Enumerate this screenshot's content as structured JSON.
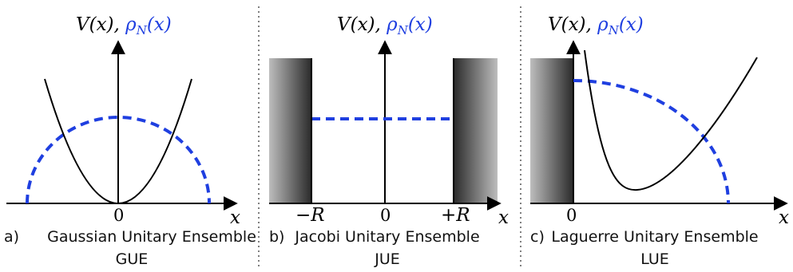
{
  "colors": {
    "density": "#1f3fe0",
    "potential": "#000000",
    "axis": "#000000",
    "wall_dark": "#2a2a2a",
    "wall_light": "#bdbdbd"
  },
  "panels": [
    {
      "id": "gue",
      "label": "a)",
      "title_line1": "Gaussian Unitary Ensemble",
      "title_line2": "GUE",
      "y_axis_V": "V(x),",
      "y_axis_rho": "ρ",
      "y_axis_rho_sub": "N",
      "y_axis_rho_arg": "(x)",
      "x_axis_label": "x",
      "ticks": [
        "0"
      ]
    },
    {
      "id": "jue",
      "label": "b)",
      "title_line1": "Jacobi Unitary Ensemble",
      "title_line2": "JUE",
      "y_axis_V": "V(x),",
      "y_axis_rho": "ρ",
      "y_axis_rho_sub": "N",
      "y_axis_rho_arg": "(x)",
      "x_axis_label": "x",
      "ticks": [
        "−R",
        "0",
        "+R"
      ]
    },
    {
      "id": "lue",
      "label": "c)",
      "title_line1": "Laguerre Unitary Ensemble",
      "title_line2": "LUE",
      "y_axis_V": "V(x),",
      "y_axis_rho": "ρ",
      "y_axis_rho_sub": "N",
      "y_axis_rho_arg": "(x)",
      "x_axis_label": "x",
      "ticks": [
        "0"
      ]
    }
  ]
}
